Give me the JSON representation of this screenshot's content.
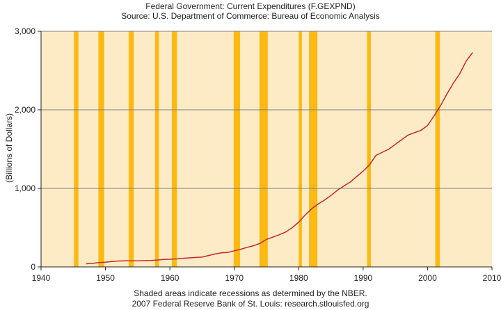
{
  "header": {
    "title": "Federal Government: Current Expenditures (F.GEXPND)",
    "subtitle": "Source: U.S. Department of Commerce: Bureau of Economic Analysis"
  },
  "footer": {
    "note": "Shaded areas indicate recessions as determined by the NBER.",
    "credit": "2007 Federal Reserve Bank of St. Louis: research.stlouisfed.org"
  },
  "colors": {
    "plot_background": "#fdebc6",
    "recession_band": "#fdb913",
    "series_line": "#c1272d",
    "gridline": "#7f7f7f"
  },
  "chart_data": {
    "type": "line",
    "title": "Federal Government: Current Expenditures (F.GEXPND)",
    "xlabel": "",
    "ylabel": "(Billions of Dollars)",
    "xlim": [
      1940,
      2010
    ],
    "ylim": [
      0,
      3000
    ],
    "xticks": [
      1940,
      1950,
      1960,
      1970,
      1980,
      1990,
      2000,
      2010
    ],
    "yticks": [
      0,
      1000,
      2000,
      3000
    ],
    "ytick_labels": [
      "0",
      "1,000",
      "2,000",
      "3,000"
    ],
    "grid": "horizontal",
    "recessions": [
      [
        1945.1,
        1945.8
      ],
      [
        1948.9,
        1949.8
      ],
      [
        1953.6,
        1954.4
      ],
      [
        1957.7,
        1958.3
      ],
      [
        1960.3,
        1961.1
      ],
      [
        1969.9,
        1970.9
      ],
      [
        1973.9,
        1975.2
      ],
      [
        1980.0,
        1980.5
      ],
      [
        1981.6,
        1982.9
      ],
      [
        1990.6,
        1991.2
      ],
      [
        2001.2,
        2001.9
      ]
    ],
    "series": [
      {
        "x": [
          1947,
          1948,
          1949,
          1950,
          1951,
          1952,
          1953,
          1954,
          1955,
          1956,
          1957,
          1958,
          1959,
          1960,
          1961,
          1962,
          1963,
          1964,
          1965,
          1966,
          1967,
          1968,
          1969,
          1970,
          1971,
          1972,
          1973,
          1974,
          1975,
          1976,
          1977,
          1978,
          1979,
          1980,
          1981,
          1982,
          1983,
          1984,
          1985,
          1986,
          1987,
          1988,
          1989,
          1990,
          1991,
          1992,
          1993,
          1994,
          1995,
          1996,
          1997,
          1998,
          1999,
          2000,
          2001,
          2002,
          2003,
          2004,
          2005,
          2006,
          2007
        ],
        "values": [
          40,
          45,
          55,
          60,
          68,
          75,
          78,
          78,
          78,
          80,
          82,
          88,
          95,
          97,
          102,
          110,
          115,
          120,
          125,
          145,
          165,
          180,
          185,
          205,
          225,
          250,
          270,
          300,
          350,
          380,
          410,
          445,
          500,
          570,
          660,
          740,
          800,
          850,
          910,
          975,
          1030,
          1080,
          1150,
          1220,
          1300,
          1420,
          1460,
          1500,
          1560,
          1620,
          1680,
          1710,
          1740,
          1800,
          1920,
          2050,
          2200,
          2340,
          2460,
          2620,
          2730
        ]
      }
    ]
  }
}
